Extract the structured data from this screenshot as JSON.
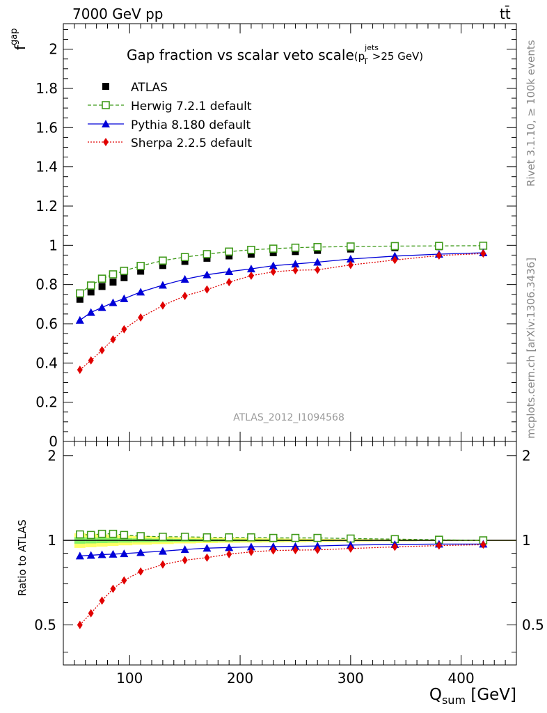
{
  "header": {
    "left": "7000 GeV pp",
    "right": "tt̄"
  },
  "side_labels": {
    "rivet": "Rivet 3.1.10, ≥ 100k events",
    "mcplots": "mcplots.cern.ch [arXiv:1306.3436]"
  },
  "chart_data": {
    "type": "scatter",
    "title": "Gap fraction vs scalar veto scale",
    "title_suffix": {
      "base": "(p",
      "sup": "jets",
      "sub": "T",
      "tail": ">25 GeV)"
    },
    "watermark": "ATLAS_2012_I1094568",
    "xlabel": {
      "base": "Q",
      "sub": "sum",
      "tail": " [GeV]"
    },
    "ylabel_main": {
      "base": "f",
      "sub": "gap"
    },
    "ylabel_ratio": "Ratio to ATLAS",
    "xlim": [
      40,
      450
    ],
    "ylim_main": [
      0,
      2.13
    ],
    "ylim_ratio": [
      0.36,
      2.25
    ],
    "grid": false,
    "legend_position": "top-left",
    "x_ticks": [
      100,
      200,
      300,
      400
    ],
    "y_ticks_main": [
      "0",
      "0.2",
      "0.4",
      "0.6",
      "0.8",
      "1",
      "1.2",
      "1.4",
      "1.6",
      "1.8",
      "2"
    ],
    "y_ticks_ratio": [
      "0.5",
      "1",
      "2"
    ],
    "x": [
      55,
      65,
      75,
      85,
      95,
      110,
      130,
      150,
      170,
      190,
      210,
      230,
      250,
      270,
      300,
      340,
      380,
      420
    ],
    "series": [
      {
        "name": "ATLAS",
        "marker": "square-filled",
        "color": "#000000",
        "values": [
          0.725,
          0.762,
          0.79,
          0.812,
          0.835,
          0.868,
          0.897,
          0.918,
          0.934,
          0.946,
          0.955,
          0.962,
          0.968,
          0.974,
          0.981,
          0.988,
          0.993,
          0.997
        ]
      },
      {
        "name": "Herwig 7.2.1 default",
        "marker": "square-open",
        "color": "#3f9a1a",
        "values": [
          0.755,
          0.795,
          0.83,
          0.852,
          0.87,
          0.895,
          0.922,
          0.94,
          0.955,
          0.968,
          0.977,
          0.983,
          0.988,
          0.991,
          0.994,
          0.996,
          0.997,
          0.998
        ]
      },
      {
        "name": "Pythia 8.180 default",
        "marker": "triangle",
        "color": "#0000d8",
        "values": [
          0.618,
          0.658,
          0.683,
          0.708,
          0.728,
          0.762,
          0.797,
          0.827,
          0.85,
          0.866,
          0.88,
          0.896,
          0.905,
          0.914,
          0.93,
          0.945,
          0.955,
          0.962
        ]
      },
      {
        "name": "Sherpa 2.2.5 default",
        "marker": "diamond",
        "color": "#e00000",
        "values": [
          0.365,
          0.413,
          0.465,
          0.52,
          0.572,
          0.632,
          0.693,
          0.742,
          0.775,
          0.812,
          0.845,
          0.865,
          0.873,
          0.875,
          0.9,
          0.925,
          0.948,
          0.958
        ]
      }
    ],
    "ratio_series": [
      {
        "name": "Herwig 7.2.1 default",
        "values": [
          1.05,
          1.045,
          1.055,
          1.055,
          1.045,
          1.035,
          1.03,
          1.03,
          1.025,
          1.025,
          1.025,
          1.02,
          1.02,
          1.02,
          1.015,
          1.01,
          1.005,
          1.0
        ]
      },
      {
        "name": "Pythia 8.180 default",
        "values": [
          0.88,
          0.885,
          0.89,
          0.893,
          0.897,
          0.905,
          0.915,
          0.928,
          0.938,
          0.943,
          0.948,
          0.95,
          0.952,
          0.955,
          0.962,
          0.967,
          0.97,
          0.97
        ]
      },
      {
        "name": "Sherpa 2.2.5 default",
        "values": [
          0.5,
          0.55,
          0.61,
          0.672,
          0.72,
          0.775,
          0.82,
          0.85,
          0.868,
          0.893,
          0.91,
          0.92,
          0.923,
          0.925,
          0.935,
          0.948,
          0.958,
          0.965
        ]
      }
    ],
    "ratio_band": {
      "lo": [
        0.94,
        0.945,
        0.95,
        0.955,
        0.96,
        0.965,
        0.97,
        0.975,
        0.978,
        0.98,
        0.982,
        0.984,
        0.986,
        0.988,
        0.99,
        0.992,
        0.994,
        0.995
      ],
      "hi": [
        1.06,
        1.055,
        1.05,
        1.045,
        1.04,
        1.035,
        1.03,
        1.025,
        1.022,
        1.02,
        1.018,
        1.016,
        1.014,
        1.012,
        1.01,
        1.008,
        1.006,
        1.005
      ],
      "colors": [
        "#ffff66",
        "#66ee66"
      ]
    }
  }
}
